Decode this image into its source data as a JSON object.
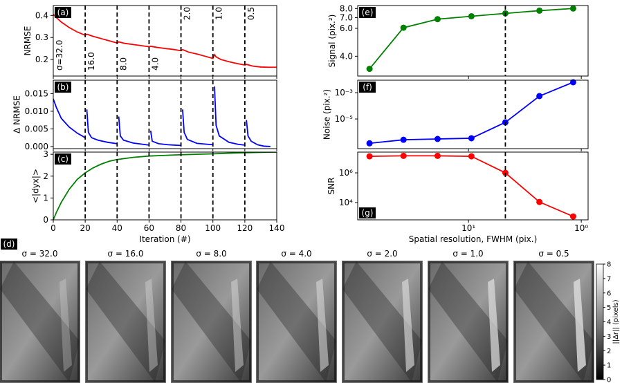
{
  "chart_data": [
    {
      "type": "line",
      "label": "(a)",
      "label_loc": "upper left",
      "ylabel": "NRMSE",
      "color": "#ff0000",
      "x": [
        0,
        2,
        5,
        10,
        15,
        20,
        21,
        25,
        30,
        35,
        40,
        41,
        45,
        50,
        55,
        60,
        61,
        65,
        70,
        75,
        80,
        81,
        85,
        90,
        95,
        100,
        101,
        102,
        105,
        110,
        115,
        120,
        121,
        125,
        130,
        135,
        140
      ],
      "values": [
        0.405,
        0.39,
        0.37,
        0.345,
        0.325,
        0.31,
        0.315,
        0.305,
        0.295,
        0.285,
        0.275,
        0.28,
        0.273,
        0.268,
        0.263,
        0.258,
        0.26,
        0.255,
        0.25,
        0.246,
        0.24,
        0.245,
        0.233,
        0.225,
        0.215,
        0.205,
        0.222,
        0.212,
        0.2,
        0.19,
        0.182,
        0.175,
        0.178,
        0.17,
        0.166,
        0.165,
        0.165
      ],
      "xlim": [
        0,
        140
      ],
      "ylim": [
        0.125,
        0.445
      ],
      "yticks": [
        0.2,
        0.3,
        0.4
      ],
      "vlines": [
        20,
        40,
        60,
        80,
        100,
        120
      ],
      "annotations": [
        "σ=32.0",
        "16.0",
        "8.0",
        "4.0",
        "2.0",
        "1.0",
        "0.5"
      ]
    },
    {
      "type": "line",
      "label": "(b)",
      "label_loc": "upper left",
      "ylabel": "Δ NRMSE",
      "color": "#0000ff",
      "x": [
        0,
        2,
        5,
        10,
        15,
        20,
        20.5,
        21,
        22,
        24,
        28,
        34,
        40,
        40.5,
        41,
        42,
        44,
        50,
        60,
        60.5,
        61,
        62,
        66,
        72,
        80,
        80.5,
        81,
        82,
        84,
        90,
        100,
        100.5,
        101,
        102,
        104,
        110,
        116,
        120,
        120.5,
        121,
        122,
        124,
        128,
        132,
        136
      ],
      "values": [
        0.0135,
        0.011,
        0.008,
        0.0055,
        0.0038,
        0.0025,
        null,
        0.0105,
        0.004,
        0.0025,
        0.0018,
        0.0012,
        0.0008,
        null,
        0.0085,
        0.003,
        0.0018,
        0.001,
        0.0004,
        null,
        0.0045,
        0.0015,
        0.0008,
        0.0005,
        0.0003,
        null,
        0.0105,
        0.004,
        0.002,
        0.0009,
        0.0005,
        null,
        0.017,
        0.006,
        0.003,
        0.0012,
        0.0006,
        0.0004,
        null,
        0.0075,
        0.003,
        0.0015,
        0.0005,
        0.0001,
        0.0
      ],
      "xlim": [
        0,
        140
      ],
      "ylim": [
        -0.0006,
        0.0188
      ],
      "yticks": [
        {
          "value": 0,
          "label": "0.000"
        },
        {
          "value": 0.005,
          "label": "0.005"
        },
        {
          "value": 0.01,
          "label": "0.010"
        },
        {
          "value": 0.015,
          "label": "0.015"
        }
      ],
      "vlines": [
        20,
        40,
        60,
        80,
        100,
        120
      ]
    },
    {
      "type": "line",
      "label": "(c)",
      "label_loc": "upper left",
      "ylabel": "<|dyx|>",
      "xlabel": "Iteration (#)",
      "color": "#008000",
      "x": [
        0,
        2,
        5,
        10,
        15,
        20,
        25,
        30,
        35,
        40,
        50,
        60,
        70,
        80,
        90,
        100,
        110,
        120,
        130,
        140
      ],
      "values": [
        0,
        0.35,
        0.8,
        1.4,
        1.85,
        2.15,
        2.38,
        2.55,
        2.68,
        2.76,
        2.86,
        2.92,
        2.95,
        2.98,
        3.0,
        3.02,
        3.05,
        3.07,
        3.09,
        3.1
      ],
      "xlim": [
        0,
        140
      ],
      "ylim": [
        0,
        3.1
      ],
      "xticks": [
        0,
        20,
        40,
        60,
        80,
        100,
        120,
        140
      ],
      "yticks": [
        0,
        1,
        2,
        3
      ],
      "vlines": [
        20,
        40,
        60,
        80,
        100,
        120
      ]
    },
    {
      "type": "line",
      "label": "(e)",
      "label_loc": "upper left",
      "ylabel": "Signal (pix.²)",
      "color": "#008000",
      "marker": "o",
      "x": [
        75.4,
        37.7,
        18.8,
        9.42,
        4.71,
        2.35,
        1.18
      ],
      "values": [
        3.33,
        6.05,
        6.85,
        7.15,
        7.45,
        7.75,
        8.0
      ],
      "xlim": [
        96,
        0.87
      ],
      "xscale": "log",
      "ylim": [
        3.0,
        8.35
      ],
      "yscale": "log",
      "yticks": [
        {
          "value": 4,
          "label": "4.0"
        },
        {
          "value": 6,
          "label": "6.0"
        },
        {
          "value": 7,
          "label": "7.0"
        },
        {
          "value": 8,
          "label": "8.0"
        }
      ],
      "vlines": [
        4.71
      ]
    },
    {
      "type": "line",
      "label": "(f)",
      "label_loc": "upper left",
      "ylabel": "Noise (pix.²)",
      "color": "#0000ff",
      "marker": "o",
      "x": [
        75.4,
        37.7,
        18.8,
        9.42,
        4.71,
        2.35,
        1.18
      ],
      "values": [
        1.4e-07,
        2.6e-07,
        3e-07,
        3.4e-07,
        5.5e-06,
        0.00055,
        0.0062
      ],
      "xlim": [
        96,
        0.87
      ],
      "xscale": "log",
      "ylim": [
        5.5e-08,
        0.0089
      ],
      "yscale": "log",
      "yticks": [
        {
          "value": 1e-05,
          "label": "10⁻⁵"
        },
        {
          "value": 0.001,
          "label": "10⁻³"
        }
      ],
      "vlines": [
        4.71
      ]
    },
    {
      "type": "line",
      "label": "(g)",
      "label_loc": "lower left",
      "ylabel": "SNR",
      "xlabel": "Spatial resolution, FWHM (pix.)",
      "color": "#ff0000",
      "marker": "o",
      "x": [
        75.4,
        37.7,
        18.8,
        9.42,
        4.71,
        2.35,
        1.18
      ],
      "values": [
        13000000,
        14000000,
        14000000,
        13000000,
        1000000,
        11000,
        1170
      ],
      "xlim": [
        96,
        0.87
      ],
      "xscale": "log",
      "ylim": [
        690,
        25000000
      ],
      "yscale": "log",
      "xticks": [
        {
          "value": 10,
          "label": "10¹"
        },
        {
          "value": 1,
          "label": "10⁰"
        }
      ],
      "yticks": [
        {
          "value": 10000,
          "label": "10⁴"
        },
        {
          "value": 1000000,
          "label": "10⁶"
        }
      ],
      "vlines": [
        4.71
      ]
    },
    {
      "type": "image",
      "label": "(d)",
      "titles": [
        "σ = 32.0",
        "σ = 16.0",
        "σ = 8.0",
        "σ = 4.0",
        "σ = 2.0",
        "σ = 1.0",
        "σ = 0.5"
      ],
      "colorbar": {
        "label": "||Δr|| (pixels)",
        "lim": [
          0,
          8
        ],
        "ticks": [
          0,
          1,
          2,
          3,
          4,
          5,
          6,
          7,
          8
        ]
      }
    }
  ]
}
